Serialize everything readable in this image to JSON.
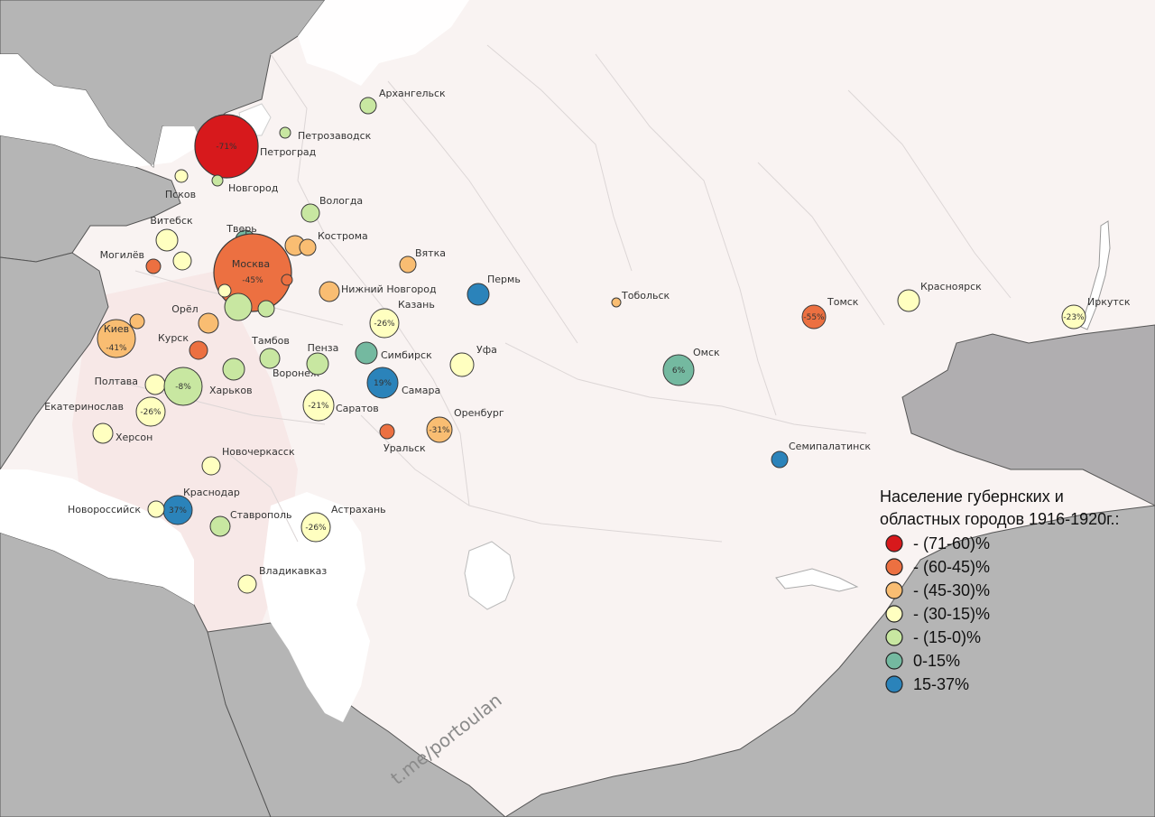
{
  "colors": {
    "bin_71_60": "#d7191c",
    "bin_60_45": "#ec7041",
    "bin_45_30": "#f9bd72",
    "bin_30_15": "#ffffc0",
    "bin_15_0": "#c8e7a1",
    "bin_0_15": "#74b9a0",
    "bin_15_37": "#2b83ba",
    "neighbor_land": "#b5b5b5",
    "russia_land": "#f9f3f2",
    "water": "#ffffff"
  },
  "watermark": "t.me/portoulan",
  "legend": {
    "title_line1": "Население губернских и",
    "title_line2": "областных городов 1916-1920г.:",
    "items": [
      {
        "label": "- (71-60)%",
        "color": "#d7191c"
      },
      {
        "label": "- (60-45)%",
        "color": "#ec7041"
      },
      {
        "label": "- (45-30)%",
        "color": "#f9bd72"
      },
      {
        "label": "- (30-15)%",
        "color": "#ffffc0"
      },
      {
        "label": "- (15-0)%",
        "color": "#c8e7a1"
      },
      {
        "label": "0-15%",
        "color": "#74b9a0"
      },
      {
        "label": "15-37%",
        "color": "#2b83ba"
      }
    ]
  },
  "cities": [
    {
      "name": "Архангельск",
      "pct": "",
      "color": "#c8e7a1"
    },
    {
      "name": "Петрозаводск",
      "pct": "",
      "color": "#c8e7a1"
    },
    {
      "name": "Петроград",
      "pct": "-71%",
      "color": "#d7191c"
    },
    {
      "name": "Псков",
      "pct": "",
      "color": "#ffffc0"
    },
    {
      "name": "Новгород",
      "pct": "",
      "color": "#c8e7a1"
    },
    {
      "name": "Вологда",
      "pct": "",
      "color": "#c8e7a1"
    },
    {
      "name": "Витебск",
      "pct": "",
      "color": "#ffffc0"
    },
    {
      "name": "Тверь",
      "pct": "",
      "color": "#74b9a0"
    },
    {
      "name": "Кострома",
      "pct": "",
      "color": "#f9bd72"
    },
    {
      "name": "",
      "pct": "",
      "color": "#f9bd72"
    },
    {
      "name": "Могилёв",
      "pct": "",
      "color": "#ec7041"
    },
    {
      "name": "",
      "pct": "",
      "color": "#ffffc0"
    },
    {
      "name": "Москва",
      "pct": "-45%",
      "color": "#ec7041"
    },
    {
      "name": "",
      "pct": "",
      "color": "#ec7041"
    },
    {
      "name": "",
      "pct": "",
      "color": "#ffffc0"
    },
    {
      "name": "",
      "pct": "",
      "color": "#c8e7a1"
    },
    {
      "name": "",
      "pct": "",
      "color": "#c8e7a1"
    },
    {
      "name": "Вятка",
      "pct": "",
      "color": "#f9bd72"
    },
    {
      "name": "Пермь",
      "pct": "",
      "color": "#2b83ba"
    },
    {
      "name": "Нижний Новгород",
      "pct": "",
      "color": "#f9bd72"
    },
    {
      "name": "Казань",
      "pct": "-26%",
      "color": "#ffffc0"
    },
    {
      "name": "Орёл",
      "pct": "",
      "color": "#f9bd72"
    },
    {
      "name": "Киев",
      "pct": "-41%",
      "color": "#f9bd72"
    },
    {
      "name": "",
      "pct": "",
      "color": "#f9bd72"
    },
    {
      "name": "Курск",
      "pct": "",
      "color": "#ec7041"
    },
    {
      "name": "Тамбов",
      "pct": "",
      "color": "#c8e7a1"
    },
    {
      "name": "Воронеж",
      "pct": "",
      "color": "#c8e7a1"
    },
    {
      "name": "Пенза",
      "pct": "",
      "color": "#c8e7a1"
    },
    {
      "name": "Симбирск",
      "pct": "",
      "color": "#74b9a0"
    },
    {
      "name": "Уфа",
      "pct": "",
      "color": "#ffffc0"
    },
    {
      "name": "Самара",
      "pct": "19%",
      "color": "#2b83ba"
    },
    {
      "name": "Полтава",
      "pct": "",
      "color": "#ffffc0"
    },
    {
      "name": "Харьков",
      "pct": "-8%",
      "color": "#c8e7a1"
    },
    {
      "name": "Екатеринослав",
      "pct": "-26%",
      "color": "#ffffc0"
    },
    {
      "name": "Саратов",
      "pct": "-21%",
      "color": "#ffffc0"
    },
    {
      "name": "Оренбург",
      "pct": "-31%",
      "color": "#f9bd72"
    },
    {
      "name": "Уральск",
      "pct": "",
      "color": "#ec7041"
    },
    {
      "name": "Херсон",
      "pct": "",
      "color": "#ffffc0"
    },
    {
      "name": "Новочеркасск",
      "pct": "",
      "color": "#ffffc0"
    },
    {
      "name": "Краснодар",
      "pct": "37%",
      "color": "#2b83ba"
    },
    {
      "name": "Новороссийск",
      "pct": "",
      "color": "#ffffc0"
    },
    {
      "name": "Ставрополь",
      "pct": "",
      "color": "#c8e7a1"
    },
    {
      "name": "Астрахань",
      "pct": "-26%",
      "color": "#ffffc0"
    },
    {
      "name": "Владикавказ",
      "pct": "",
      "color": "#ffffc0"
    },
    {
      "name": "Тобольск",
      "pct": "",
      "color": "#f9bd72"
    },
    {
      "name": "Омск",
      "pct": "6%",
      "color": "#74b9a0"
    },
    {
      "name": "Томск",
      "pct": "-55%",
      "color": "#ec7041"
    },
    {
      "name": "Красноярск",
      "pct": "",
      "color": "#ffffc0"
    },
    {
      "name": "Иркутск",
      "pct": "-23%",
      "color": "#ffffc0"
    },
    {
      "name": "Семипалатинск",
      "pct": "",
      "color": "#2b83ba"
    }
  ]
}
